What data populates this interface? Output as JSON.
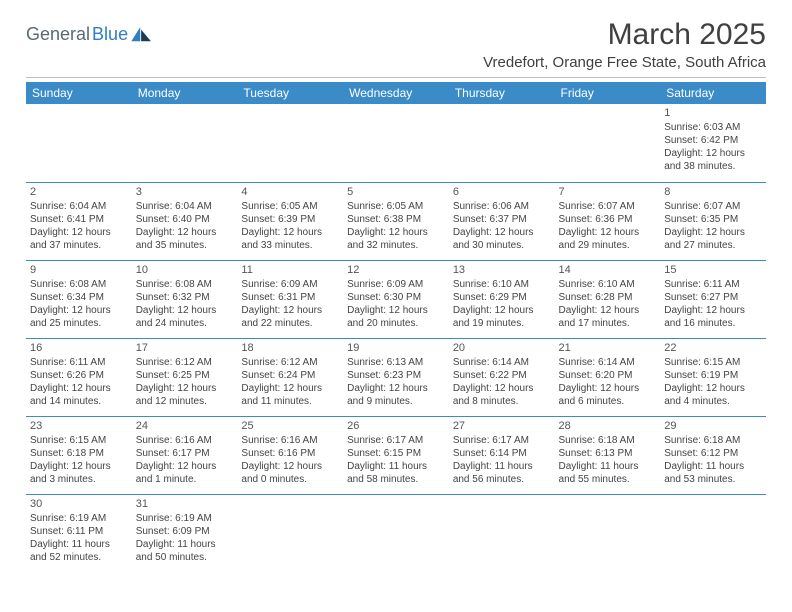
{
  "logo": {
    "part1": "General",
    "part2": "Blue"
  },
  "title": "March 2025",
  "location": "Vredefort, Orange Free State, South Africa",
  "dayHeaders": [
    "Sunday",
    "Monday",
    "Tuesday",
    "Wednesday",
    "Thursday",
    "Friday",
    "Saturday"
  ],
  "colors": {
    "headerBg": "#3b8bc8",
    "headerText": "#ffffff",
    "logoGray": "#5a6a72",
    "logoBlue": "#2f7fc1",
    "cellBorder": "#3b8bc8",
    "bodyText": "#444444"
  },
  "weeks": [
    [
      null,
      null,
      null,
      null,
      null,
      null,
      {
        "n": "1",
        "sr": "Sunrise: 6:03 AM",
        "ss": "Sunset: 6:42 PM",
        "dl1": "Daylight: 12 hours",
        "dl2": "and 38 minutes."
      }
    ],
    [
      {
        "n": "2",
        "sr": "Sunrise: 6:04 AM",
        "ss": "Sunset: 6:41 PM",
        "dl1": "Daylight: 12 hours",
        "dl2": "and 37 minutes."
      },
      {
        "n": "3",
        "sr": "Sunrise: 6:04 AM",
        "ss": "Sunset: 6:40 PM",
        "dl1": "Daylight: 12 hours",
        "dl2": "and 35 minutes."
      },
      {
        "n": "4",
        "sr": "Sunrise: 6:05 AM",
        "ss": "Sunset: 6:39 PM",
        "dl1": "Daylight: 12 hours",
        "dl2": "and 33 minutes."
      },
      {
        "n": "5",
        "sr": "Sunrise: 6:05 AM",
        "ss": "Sunset: 6:38 PM",
        "dl1": "Daylight: 12 hours",
        "dl2": "and 32 minutes."
      },
      {
        "n": "6",
        "sr": "Sunrise: 6:06 AM",
        "ss": "Sunset: 6:37 PM",
        "dl1": "Daylight: 12 hours",
        "dl2": "and 30 minutes."
      },
      {
        "n": "7",
        "sr": "Sunrise: 6:07 AM",
        "ss": "Sunset: 6:36 PM",
        "dl1": "Daylight: 12 hours",
        "dl2": "and 29 minutes."
      },
      {
        "n": "8",
        "sr": "Sunrise: 6:07 AM",
        "ss": "Sunset: 6:35 PM",
        "dl1": "Daylight: 12 hours",
        "dl2": "and 27 minutes."
      }
    ],
    [
      {
        "n": "9",
        "sr": "Sunrise: 6:08 AM",
        "ss": "Sunset: 6:34 PM",
        "dl1": "Daylight: 12 hours",
        "dl2": "and 25 minutes."
      },
      {
        "n": "10",
        "sr": "Sunrise: 6:08 AM",
        "ss": "Sunset: 6:32 PM",
        "dl1": "Daylight: 12 hours",
        "dl2": "and 24 minutes."
      },
      {
        "n": "11",
        "sr": "Sunrise: 6:09 AM",
        "ss": "Sunset: 6:31 PM",
        "dl1": "Daylight: 12 hours",
        "dl2": "and 22 minutes."
      },
      {
        "n": "12",
        "sr": "Sunrise: 6:09 AM",
        "ss": "Sunset: 6:30 PM",
        "dl1": "Daylight: 12 hours",
        "dl2": "and 20 minutes."
      },
      {
        "n": "13",
        "sr": "Sunrise: 6:10 AM",
        "ss": "Sunset: 6:29 PM",
        "dl1": "Daylight: 12 hours",
        "dl2": "and 19 minutes."
      },
      {
        "n": "14",
        "sr": "Sunrise: 6:10 AM",
        "ss": "Sunset: 6:28 PM",
        "dl1": "Daylight: 12 hours",
        "dl2": "and 17 minutes."
      },
      {
        "n": "15",
        "sr": "Sunrise: 6:11 AM",
        "ss": "Sunset: 6:27 PM",
        "dl1": "Daylight: 12 hours",
        "dl2": "and 16 minutes."
      }
    ],
    [
      {
        "n": "16",
        "sr": "Sunrise: 6:11 AM",
        "ss": "Sunset: 6:26 PM",
        "dl1": "Daylight: 12 hours",
        "dl2": "and 14 minutes."
      },
      {
        "n": "17",
        "sr": "Sunrise: 6:12 AM",
        "ss": "Sunset: 6:25 PM",
        "dl1": "Daylight: 12 hours",
        "dl2": "and 12 minutes."
      },
      {
        "n": "18",
        "sr": "Sunrise: 6:12 AM",
        "ss": "Sunset: 6:24 PM",
        "dl1": "Daylight: 12 hours",
        "dl2": "and 11 minutes."
      },
      {
        "n": "19",
        "sr": "Sunrise: 6:13 AM",
        "ss": "Sunset: 6:23 PM",
        "dl1": "Daylight: 12 hours",
        "dl2": "and 9 minutes."
      },
      {
        "n": "20",
        "sr": "Sunrise: 6:14 AM",
        "ss": "Sunset: 6:22 PM",
        "dl1": "Daylight: 12 hours",
        "dl2": "and 8 minutes."
      },
      {
        "n": "21",
        "sr": "Sunrise: 6:14 AM",
        "ss": "Sunset: 6:20 PM",
        "dl1": "Daylight: 12 hours",
        "dl2": "and 6 minutes."
      },
      {
        "n": "22",
        "sr": "Sunrise: 6:15 AM",
        "ss": "Sunset: 6:19 PM",
        "dl1": "Daylight: 12 hours",
        "dl2": "and 4 minutes."
      }
    ],
    [
      {
        "n": "23",
        "sr": "Sunrise: 6:15 AM",
        "ss": "Sunset: 6:18 PM",
        "dl1": "Daylight: 12 hours",
        "dl2": "and 3 minutes."
      },
      {
        "n": "24",
        "sr": "Sunrise: 6:16 AM",
        "ss": "Sunset: 6:17 PM",
        "dl1": "Daylight: 12 hours",
        "dl2": "and 1 minute."
      },
      {
        "n": "25",
        "sr": "Sunrise: 6:16 AM",
        "ss": "Sunset: 6:16 PM",
        "dl1": "Daylight: 12 hours",
        "dl2": "and 0 minutes."
      },
      {
        "n": "26",
        "sr": "Sunrise: 6:17 AM",
        "ss": "Sunset: 6:15 PM",
        "dl1": "Daylight: 11 hours",
        "dl2": "and 58 minutes."
      },
      {
        "n": "27",
        "sr": "Sunrise: 6:17 AM",
        "ss": "Sunset: 6:14 PM",
        "dl1": "Daylight: 11 hours",
        "dl2": "and 56 minutes."
      },
      {
        "n": "28",
        "sr": "Sunrise: 6:18 AM",
        "ss": "Sunset: 6:13 PM",
        "dl1": "Daylight: 11 hours",
        "dl2": "and 55 minutes."
      },
      {
        "n": "29",
        "sr": "Sunrise: 6:18 AM",
        "ss": "Sunset: 6:12 PM",
        "dl1": "Daylight: 11 hours",
        "dl2": "and 53 minutes."
      }
    ],
    [
      {
        "n": "30",
        "sr": "Sunrise: 6:19 AM",
        "ss": "Sunset: 6:11 PM",
        "dl1": "Daylight: 11 hours",
        "dl2": "and 52 minutes."
      },
      {
        "n": "31",
        "sr": "Sunrise: 6:19 AM",
        "ss": "Sunset: 6:09 PM",
        "dl1": "Daylight: 11 hours",
        "dl2": "and 50 minutes."
      },
      null,
      null,
      null,
      null,
      null
    ]
  ]
}
